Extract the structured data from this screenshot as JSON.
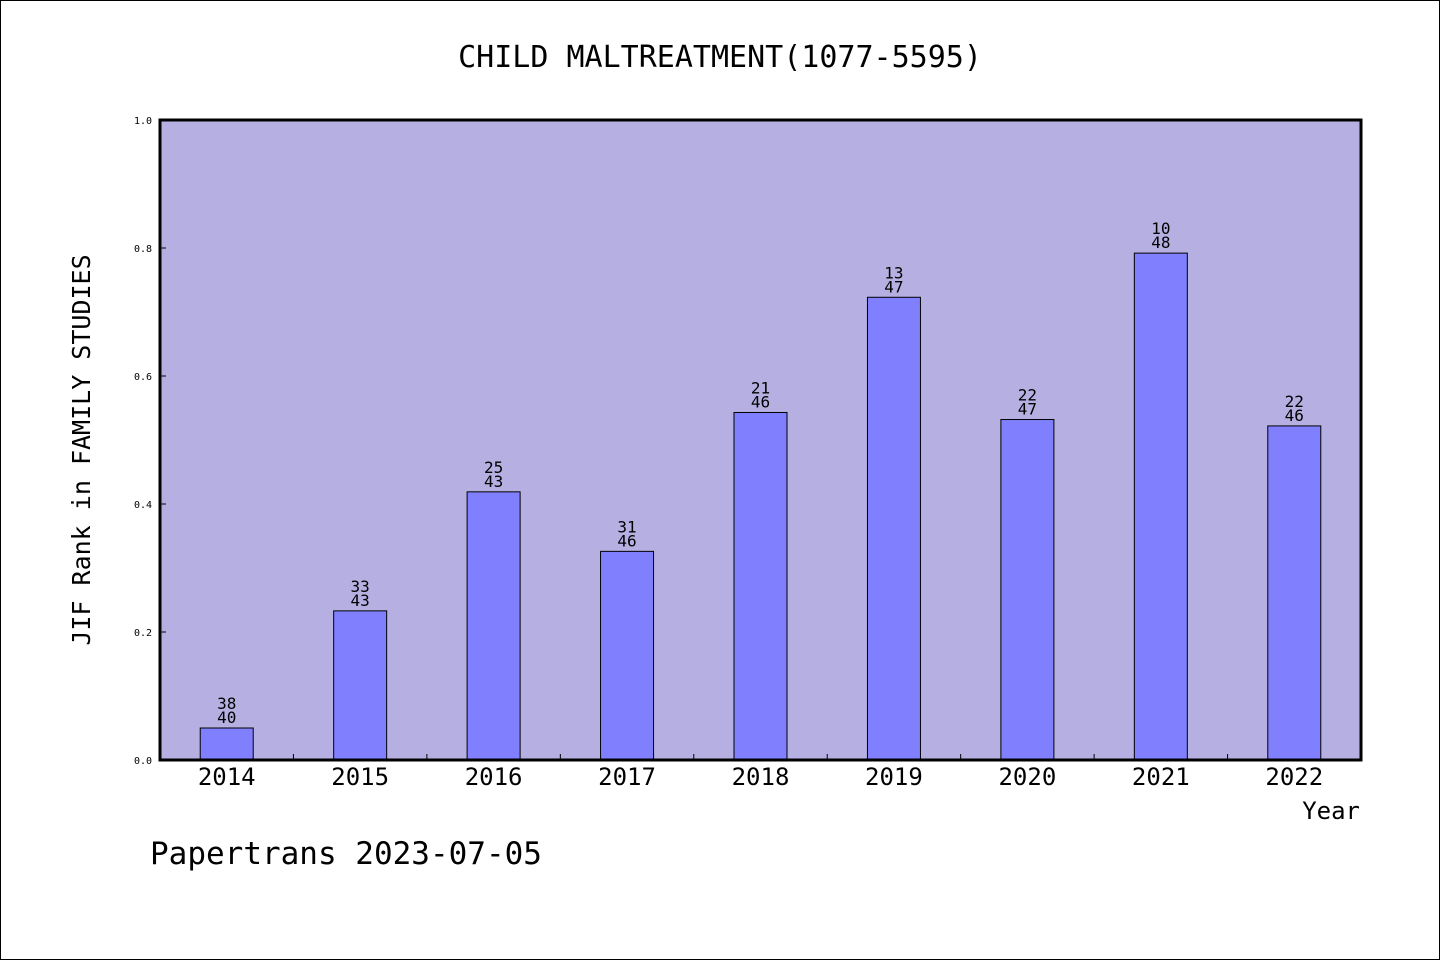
{
  "chart_data": {
    "type": "bar",
    "title": "CHILD MALTREATMENT(1077-5595)",
    "xlabel": "Year",
    "ylabel": "JIF Rank in FAMILY STUDIES",
    "ylim": [
      0,
      1.0
    ],
    "yticks": [
      "0.0",
      "0.2",
      "0.4",
      "0.6",
      "0.8",
      "1.0"
    ],
    "grid": false,
    "categories": [
      "2014",
      "2015",
      "2016",
      "2017",
      "2018",
      "2019",
      "2020",
      "2021",
      "2022"
    ],
    "values": [
      0.05,
      0.233,
      0.419,
      0.326,
      0.543,
      0.723,
      0.532,
      0.792,
      0.522
    ],
    "data_labels": [
      {
        "rank": "38",
        "total": "40"
      },
      {
        "rank": "33",
        "total": "43"
      },
      {
        "rank": "25",
        "total": "43"
      },
      {
        "rank": "31",
        "total": "46"
      },
      {
        "rank": "21",
        "total": "46"
      },
      {
        "rank": "13",
        "total": "47"
      },
      {
        "rank": "22",
        "total": "47"
      },
      {
        "rank": "10",
        "total": "48"
      },
      {
        "rank": "22",
        "total": "46"
      }
    ],
    "colors": {
      "plot_background": "#b6b0e2",
      "bar": "#8080ff",
      "bar_edge": "#000000"
    }
  },
  "footer": {
    "credit": "Papertrans 2023-07-05"
  }
}
